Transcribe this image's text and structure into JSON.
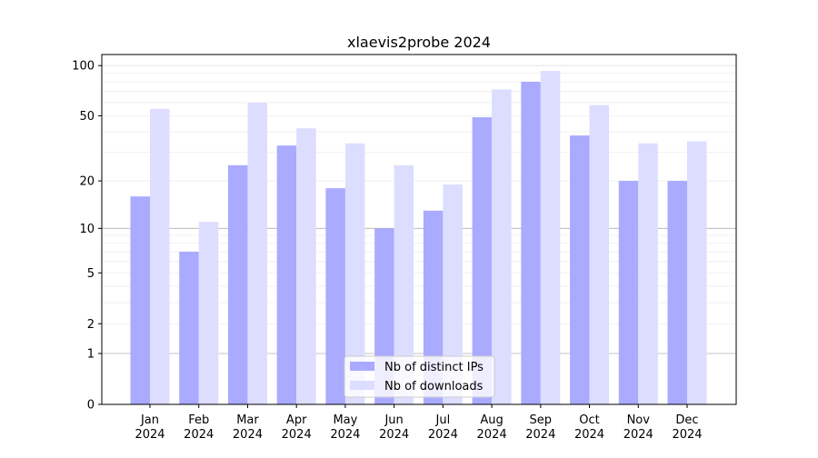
{
  "chart_data": {
    "type": "bar",
    "title": "xlaevis2probe 2024",
    "xlabel": "",
    "ylabel": "",
    "yscale": "symlog (log10(1+y))",
    "ylim": [
      0,
      110
    ],
    "yticks": [
      0,
      1,
      2,
      5,
      10,
      20,
      50,
      100
    ],
    "grid": true,
    "legend_position": "bottom-center",
    "categories": [
      "Jan\n2024",
      "Feb\n2024",
      "Mar\n2024",
      "Apr\n2024",
      "May\n2024",
      "Jun\n2024",
      "Jul\n2024",
      "Aug\n2024",
      "Sep\n2024",
      "Oct\n2024",
      "Nov\n2024",
      "Dec\n2024"
    ],
    "series": [
      {
        "name": "Nb of distinct IPs",
        "color": "#aaaaff",
        "values": [
          16,
          7,
          25,
          33,
          18,
          10,
          13,
          49,
          80,
          38,
          20,
          20
        ]
      },
      {
        "name": "Nb of downloads",
        "color": "#ddddff",
        "values": [
          55,
          11,
          60,
          42,
          34,
          25,
          19,
          72,
          93,
          58,
          34,
          35
        ]
      }
    ]
  }
}
